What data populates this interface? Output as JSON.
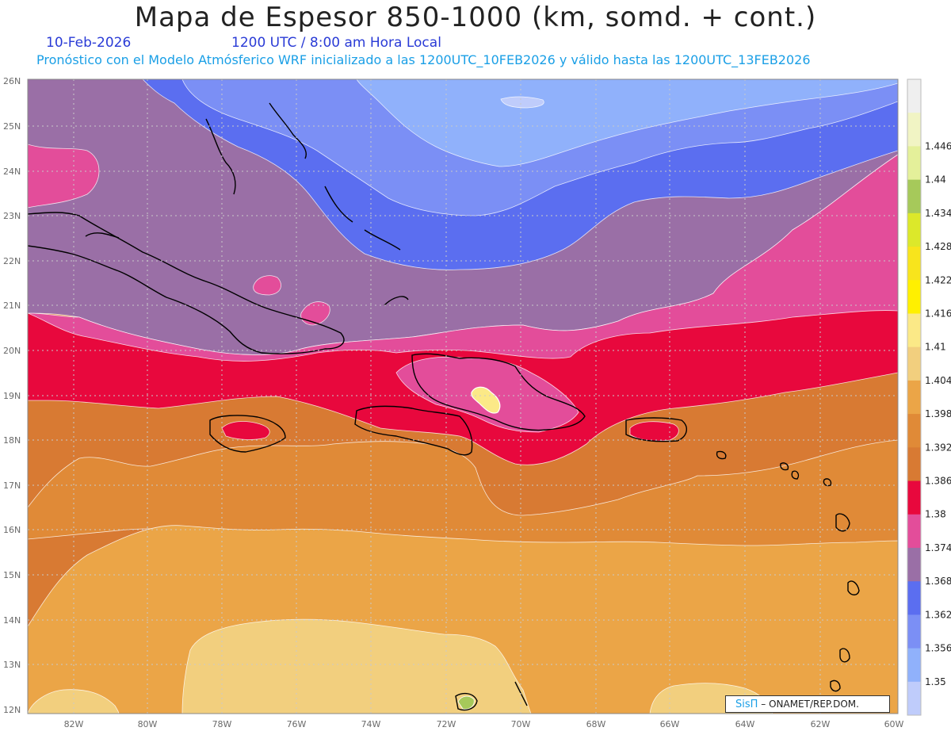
{
  "header": {
    "title": "Mapa de Espesor 850-1000 (km, somd. + cont.)",
    "date": "10-Feb-2026",
    "time": "1200 UTC / 8:00 am Hora Local",
    "subtitle": "Pronóstico con el Modelo Atmósferico WRF inicializado a las 1200UTC_10FEB2026 y válido hasta las  1200UTC_13FEB2026"
  },
  "axes": {
    "lat_labels": [
      "26N",
      "25N",
      "24N",
      "23N",
      "22N",
      "21N",
      "20N",
      "19N",
      "18N",
      "17N",
      "16N",
      "15N",
      "14N",
      "13N",
      "12N"
    ],
    "lon_labels": [
      "82W",
      "80W",
      "78W",
      "76W",
      "74W",
      "72W",
      "70W",
      "68W",
      "66W",
      "64W",
      "62W",
      "60W"
    ]
  },
  "colorbar": {
    "labels": [
      "1.446",
      "1.44",
      "1.434",
      "1.428",
      "1.422",
      "1.416",
      "1.41",
      "1.404",
      "1.398",
      "1.392",
      "1.386",
      "1.38",
      "1.374",
      "1.368",
      "1.362",
      "1.356",
      "1.35"
    ],
    "colors": [
      "#efefef",
      "#f1f4c4",
      "#e4f09a",
      "#a6c95a",
      "#dce82a",
      "#f8e41c",
      "#fff000",
      "#fbe987",
      "#f2cf7e",
      "#eba547",
      "#e08a37",
      "#d87a33",
      "#e8083d",
      "#e34d9a",
      "#9a6fa6",
      "#5b6ef0",
      "#7b8ff5",
      "#90b1fb",
      "#bfccfb"
    ]
  },
  "legend": {
    "brand": "SisΠ",
    "credit": "– ONAMET/REP.DOM."
  },
  "colors": {
    "band_1_35": "#bfccfb",
    "band_1_356": "#90b1fb",
    "band_1_362": "#7b8ff5",
    "band_1_368": "#5b6ef0",
    "band_1_374": "#9a6fa6",
    "band_1_38": "#e34d9a",
    "band_1_386": "#e8083d",
    "band_1_392": "#d87a33",
    "band_1_398": "#e08a37",
    "band_1_404": "#eba547",
    "band_1_41": "#f2cf7e"
  }
}
